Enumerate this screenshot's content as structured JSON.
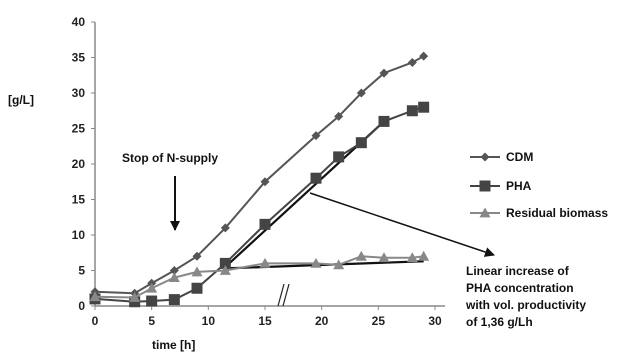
{
  "chart_data": {
    "type": "line",
    "ylabel": "[g/L]",
    "xlabel": "time [h]",
    "xlim": [
      0,
      30
    ],
    "ylim": [
      0,
      40
    ],
    "xticks": [
      "0",
      "5",
      "10",
      "15",
      "20",
      "25",
      "30"
    ],
    "yticks": [
      "0",
      "5",
      "10",
      "15",
      "20",
      "25",
      "30",
      "35",
      "40"
    ],
    "grid": false,
    "legend_position": "right",
    "series": [
      {
        "name": "CDM",
        "marker": "diamond",
        "color": "#555555",
        "x": [
          0,
          3.5,
          5,
          7,
          9,
          11.5,
          15,
          19.5,
          21.5,
          23.5,
          25.5,
          28,
          29
        ],
        "y": [
          2.0,
          1.8,
          3.2,
          5.0,
          7.0,
          11.0,
          17.5,
          24.0,
          26.7,
          30.0,
          32.8,
          34.3,
          35.2
        ]
      },
      {
        "name": "PHA",
        "marker": "square",
        "color": "#444444",
        "x": [
          0,
          3.5,
          5,
          7,
          9,
          11.5,
          15,
          19.5,
          21.5,
          23.5,
          25.5,
          28,
          29
        ],
        "y": [
          1.0,
          0.6,
          0.7,
          0.9,
          2.5,
          6.0,
          11.5,
          18.0,
          21.0,
          23.0,
          26.0,
          27.5,
          28.0
        ]
      },
      {
        "name": "Residual biomass",
        "marker": "triangle",
        "color": "#888888",
        "x": [
          0,
          3.5,
          5,
          7,
          9,
          11.5,
          15,
          19.5,
          21.5,
          23.5,
          25.5,
          28,
          29
        ],
        "y": [
          1.3,
          1.2,
          2.5,
          4.0,
          4.8,
          5.0,
          6.0,
          6.0,
          5.8,
          7.0,
          6.8,
          6.8,
          7.0
        ]
      }
    ],
    "trend_lines": [
      {
        "x": [
          11.5,
          25.5
        ],
        "y": [
          5.5,
          26.0
        ]
      },
      {
        "x": [
          11.5,
          29
        ],
        "y": [
          5.3,
          6.3
        ]
      }
    ],
    "annotations": {
      "stop": "Stop of N-supply",
      "linear": [
        "Linear increase of",
        "PHA concentration",
        "with vol. productivity",
        "of 1,36 g/Lh"
      ]
    }
  }
}
